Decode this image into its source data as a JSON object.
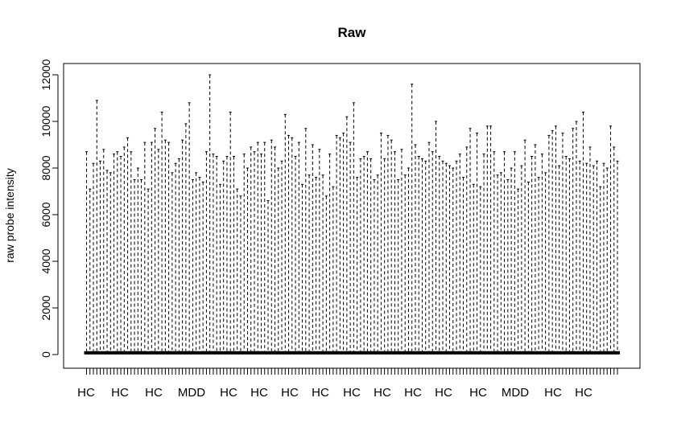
{
  "chart_data": {
    "type": "boxplot",
    "title": "Raw",
    "xlabel": "",
    "ylabel": "raw probe intensity",
    "ylim": [
      0,
      12600
    ],
    "yticks": [
      0,
      2000,
      4000,
      6000,
      8000,
      10000,
      12000
    ],
    "grid": false,
    "legend": "none",
    "box_median": 75,
    "n_samples": 94,
    "x_labels_shown": [
      "HC",
      "HC",
      "HC",
      "MDD",
      "HC",
      "HC",
      "HC",
      "HC",
      "HC",
      "HC",
      "HC",
      "HC",
      "HC",
      "MDD",
      "HC",
      "HC"
    ],
    "upper_whisker": [
      8700,
      7100,
      8200,
      10900,
      8300,
      8800,
      7900,
      7800,
      8600,
      8700,
      8500,
      8900,
      9300,
      8700,
      7500,
      8000,
      7500,
      9100,
      7100,
      9100,
      9700,
      8800,
      10400,
      9200,
      9100,
      7800,
      8200,
      8400,
      9200,
      9900,
      10800,
      7500,
      7800,
      7600,
      7400,
      8700,
      12000,
      8600,
      8500,
      7300,
      8300,
      8500,
      10400,
      8500,
      7100,
      6800,
      8600,
      8000,
      8900,
      8700,
      9100,
      8600,
      9100,
      6600,
      9200,
      8900,
      8000,
      8300,
      10300,
      9400,
      9300,
      8500,
      9100,
      7300,
      9700,
      7700,
      9000,
      7600,
      8800,
      7700,
      6800,
      8600,
      7200,
      9400,
      9300,
      9500,
      10200,
      9100,
      10800,
      7600,
      8400,
      8500,
      8700,
      8400,
      7500,
      7700,
      9500,
      8400,
      9400,
      9200,
      8700,
      7500,
      8800,
      7700
    ],
    "upper_whisker_right": [
      8000,
      11600,
      9000,
      8500,
      8400,
      8300,
      9100,
      8700,
      10000,
      8500,
      8300,
      8200,
      8100,
      8000,
      8300,
      8600,
      7600,
      8900,
      9700,
      7300,
      9500,
      7200,
      8600,
      9800,
      9800,
      8700,
      7700,
      7800,
      8700,
      7500,
      8000,
      8700,
      7100,
      8100,
      9200,
      7400,
      8500,
      9000,
      7600,
      8600,
      7800,
      9400,
      9600,
      9800,
      8100,
      9500,
      8500,
      8400,
      9700,
      10000,
      8300,
      10400,
      8200,
      8900,
      8100,
      8300,
      7200,
      8200,
      8000,
      9800,
      8900,
      8300
    ]
  }
}
